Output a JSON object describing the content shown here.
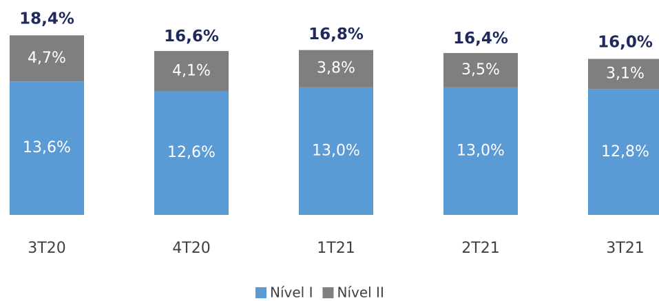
{
  "chart_data": {
    "type": "stacked_bar",
    "categories": [
      "3T20",
      "4T20",
      "1T21",
      "2T21",
      "3T21"
    ],
    "series": [
      {
        "name": "Nível I",
        "color": "#5b9bd5",
        "values": [
          13.6,
          12.6,
          13.0,
          13.0,
          12.8
        ],
        "value_labels": [
          "13,6%",
          "12,6%",
          "13,0%",
          "13,0%",
          "12,8%"
        ]
      },
      {
        "name": "Nível II",
        "color": "#7f7f7f",
        "values": [
          4.7,
          4.1,
          3.8,
          3.5,
          3.1
        ],
        "value_labels": [
          "4,7%",
          "4,1%",
          "3,8%",
          "3,5%",
          "3,1%"
        ]
      }
    ],
    "totals": {
      "values": [
        18.4,
        16.6,
        16.8,
        16.4,
        16.0
      ],
      "value_labels": [
        "18,4%",
        "16,6%",
        "16,8%",
        "16,4%",
        "16,0%"
      ]
    },
    "ylim": [
      0,
      21.9
    ],
    "legend": "bottom"
  }
}
